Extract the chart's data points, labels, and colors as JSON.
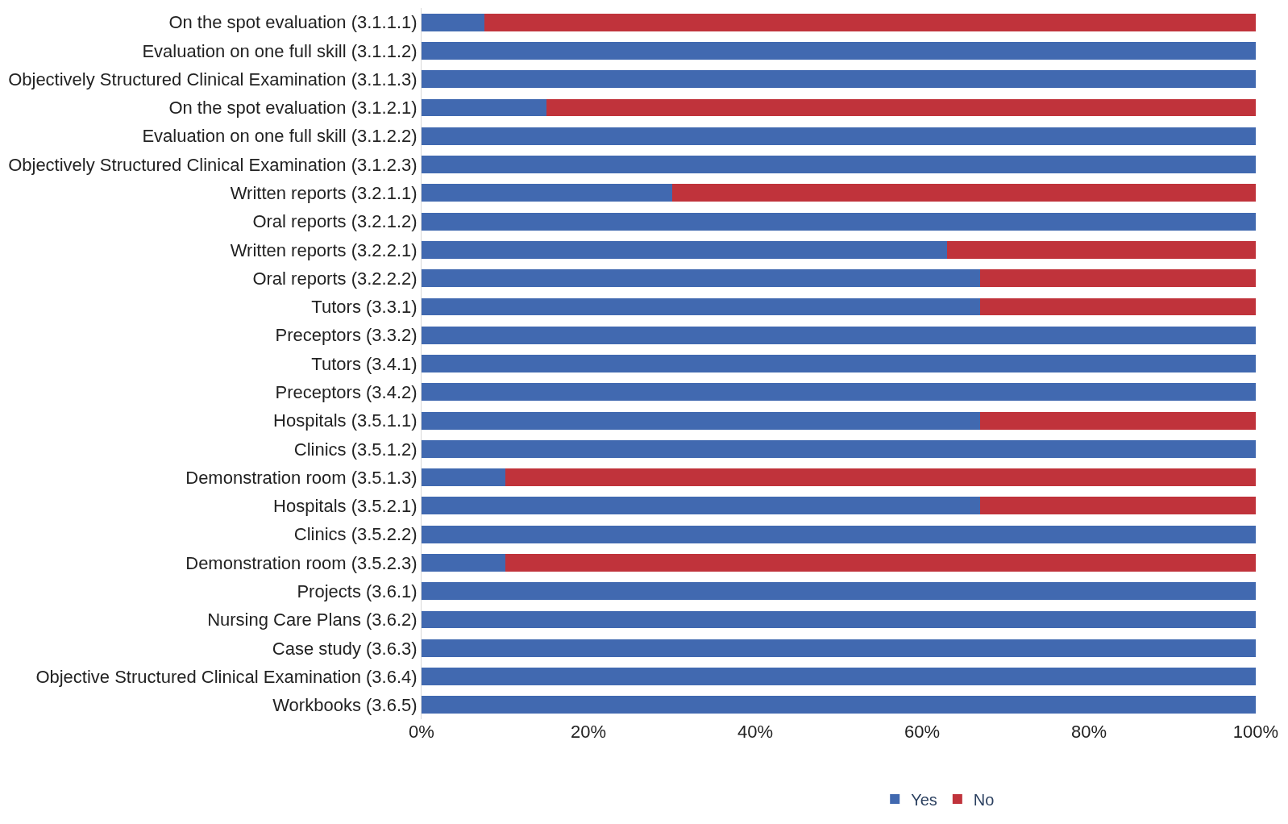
{
  "chart_data": {
    "type": "bar",
    "orientation": "horizontal",
    "stacked": true,
    "categories": [
      "On the spot evaluation (3.1.1.1)",
      "Evaluation on one full skill (3.1.1.2)",
      "Objectively Structured Clinical Examination (3.1.1.3)",
      "On the spot evaluation (3.1.2.1)",
      "Evaluation on one full skill (3.1.2.2)",
      "Objectively Structured Clinical Examination (3.1.2.3)",
      "Written reports (3.2.1.1)",
      "Oral reports (3.2.1.2)",
      "Written reports (3.2.2.1)",
      "Oral reports (3.2.2.2)",
      "Tutors (3.3.1)",
      "Preceptors (3.3.2)",
      "Tutors (3.4.1)",
      "Preceptors (3.4.2)",
      "Hospitals (3.5.1.1)",
      "Clinics (3.5.1.2)",
      "Demonstration room (3.5.1.3)",
      "Hospitals (3.5.2.1)",
      "Clinics (3.5.2.2)",
      "Demonstration room (3.5.2.3)",
      "Projects (3.6.1)",
      "Nursing Care Plans (3.6.2)",
      "Case study (3.6.3)",
      "Objective Structured Clinical Examination (3.6.4)",
      "Workbooks (3.6.5)"
    ],
    "series": [
      {
        "name": "Yes",
        "color": "#4169b0",
        "values": [
          7.5,
          100,
          100,
          15,
          100,
          100,
          30,
          100,
          63,
          67,
          67,
          100,
          100,
          100,
          67,
          100,
          10,
          67,
          100,
          10,
          100,
          100,
          100,
          100,
          100
        ]
      },
      {
        "name": "No",
        "color": "#c0333b",
        "values": [
          92.5,
          0,
          0,
          85,
          0,
          0,
          70,
          0,
          37,
          33,
          33,
          0,
          0,
          0,
          33,
          0,
          90,
          33,
          0,
          90,
          0,
          0,
          0,
          0,
          0
        ]
      }
    ],
    "xlim": [
      0,
      100
    ],
    "xticks": [
      {
        "value": 0,
        "label": "0%"
      },
      {
        "value": 20,
        "label": "20%"
      },
      {
        "value": 40,
        "label": "40%"
      },
      {
        "value": 60,
        "label": "60%"
      },
      {
        "value": 80,
        "label": "80%"
      },
      {
        "value": 100,
        "label": "100%"
      }
    ],
    "legend": "bottom"
  }
}
